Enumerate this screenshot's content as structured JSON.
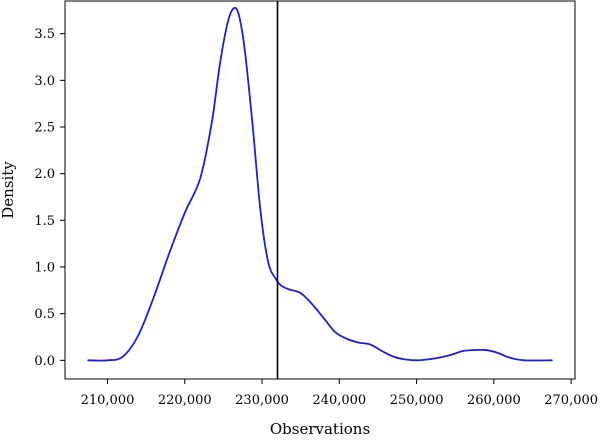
{
  "chart_data": {
    "type": "line",
    "title": "",
    "xlabel": "Observations",
    "ylabel": "Density",
    "xlim": [
      204500,
      270500
    ],
    "ylim": [
      -0.2,
      3.85
    ],
    "x_ticks": [
      210000,
      220000,
      230000,
      240000,
      250000,
      260000,
      270000
    ],
    "x_tick_labels": [
      "210,000",
      "220,000",
      "230,000",
      "240,000",
      "250,000",
      "260,000",
      "270,000"
    ],
    "y_ticks": [
      0.0,
      0.5,
      1.0,
      1.5,
      2.0,
      2.5,
      3.0,
      3.5
    ],
    "y_tick_labels": [
      "0.0",
      "0.5",
      "1.0",
      "1.5",
      "2.0",
      "2.5",
      "3.0",
      "3.5"
    ],
    "grid": false,
    "legend": "none",
    "series": [
      {
        "color": "#1f1fd6",
        "x": [
          207500,
          210000,
          212000,
          214000,
          216000,
          218000,
          220000,
          222000,
          223500,
          224500,
          225500,
          226300,
          227000,
          227800,
          228800,
          229800,
          230800,
          231800,
          232500,
          233500,
          235000,
          236500,
          238000,
          239500,
          241000,
          242500,
          244000,
          245500,
          247000,
          248500,
          250000,
          251500,
          253000,
          254500,
          256000,
          257500,
          259000,
          260500,
          262000,
          264000,
          267500
        ],
        "values": [
          0.0,
          0.0,
          0.04,
          0.27,
          0.68,
          1.15,
          1.58,
          1.95,
          2.55,
          3.15,
          3.6,
          3.77,
          3.7,
          3.3,
          2.5,
          1.6,
          1.05,
          0.87,
          0.8,
          0.76,
          0.72,
          0.6,
          0.45,
          0.3,
          0.23,
          0.19,
          0.17,
          0.1,
          0.04,
          0.01,
          0.0,
          0.01,
          0.03,
          0.06,
          0.1,
          0.11,
          0.11,
          0.08,
          0.03,
          0.0,
          0.0
        ]
      }
    ],
    "reference_lines": [
      {
        "axis": "x",
        "value": 232000,
        "color": "#000000"
      }
    ]
  }
}
